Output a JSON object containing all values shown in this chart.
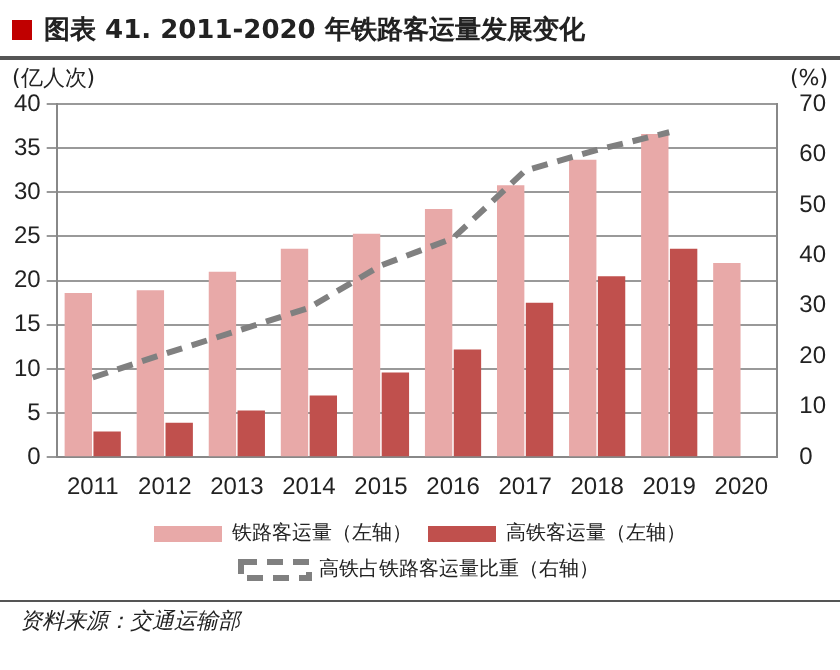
{
  "chart_data": {
    "type": "bar",
    "title": "图表 41. 2011-2020 年铁路客运量发展变化",
    "ylabel": "(亿人次)",
    "y2label": "(%)",
    "categories": [
      "2011",
      "2012",
      "2013",
      "2014",
      "2015",
      "2016",
      "2017",
      "2018",
      "2019",
      "2020"
    ],
    "series": [
      {
        "name": "铁路客运量（左轴）",
        "color": "#e8a9a8",
        "values": [
          18.6,
          18.9,
          21.0,
          23.6,
          25.3,
          28.1,
          30.8,
          33.7,
          36.6,
          22.0
        ]
      },
      {
        "name": "高铁客运量（左轴）",
        "color": "#c0504d",
        "values": [
          2.9,
          3.9,
          5.3,
          7.0,
          9.6,
          12.2,
          17.5,
          20.5,
          23.6,
          null
        ]
      },
      {
        "name": "高铁占铁路客运量比重（右轴）",
        "type": "line",
        "axis": "y2",
        "color": "#808080",
        "line_style": "dashed",
        "marker": "none",
        "values": [
          15.8,
          20.5,
          25.0,
          29.6,
          38.0,
          43.4,
          56.8,
          60.9,
          64.4,
          null
        ]
      }
    ],
    "ylim": [
      0,
      40
    ],
    "yticks": [
      0,
      5,
      10,
      15,
      20,
      25,
      30,
      35,
      40
    ],
    "y2lim": [
      0,
      70
    ],
    "y2ticks": [
      0,
      10,
      20,
      30,
      40,
      50,
      60,
      70
    ],
    "grid": "y",
    "legend": "bottom",
    "annotations": [
      "资料来源：交通运输部"
    ]
  }
}
